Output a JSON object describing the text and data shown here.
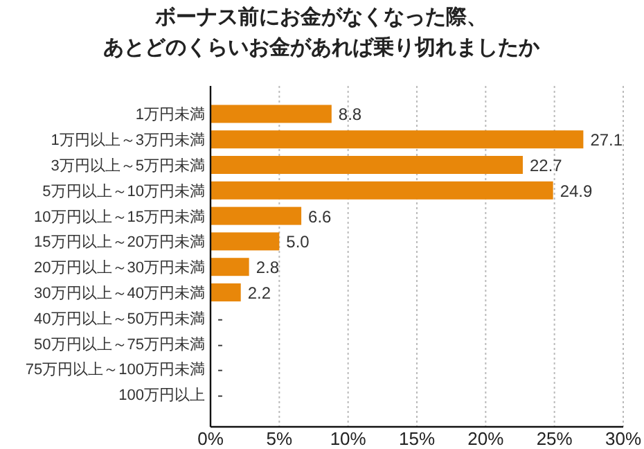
{
  "chart_data": {
    "type": "bar",
    "orientation": "horizontal",
    "title": "ボーナス前にお金がなくなった際、あとどのくらいお金があれば乗り切れましたか",
    "categories": [
      "1万円未満",
      "1万円以上～3万円未満",
      "3万円以上～5万円未満",
      "5万円以上～10万円未満",
      "10万円以上～15万円未満",
      "15万円以上～20万円未満",
      "20万円以上～30万円未満",
      "30万円以上～40万円未満",
      "40万円以上～50万円未満",
      "50万円以上～75万円未満",
      "75万円以上～100万円未満",
      "100万円以上"
    ],
    "values": [
      8.8,
      27.1,
      22.7,
      24.9,
      6.6,
      5.0,
      2.8,
      2.2,
      null,
      null,
      null,
      null
    ],
    "value_labels": [
      "8.8",
      "27.1",
      "22.7",
      "24.9",
      "6.6",
      "5.0",
      "2.8",
      "2.2",
      "-",
      "-",
      "-",
      "-"
    ],
    "color": "#e8870a",
    "xlim": [
      0,
      30
    ],
    "xticks": [
      {
        "value": 0,
        "label": "0%"
      },
      {
        "value": 5,
        "label": "5%"
      },
      {
        "value": 10,
        "label": "10%"
      },
      {
        "value": 15,
        "label": "15%"
      },
      {
        "value": 20,
        "label": "20%"
      },
      {
        "value": 25,
        "label": "25%"
      },
      {
        "value": 30,
        "label": "30%"
      }
    ],
    "grid": "x"
  }
}
